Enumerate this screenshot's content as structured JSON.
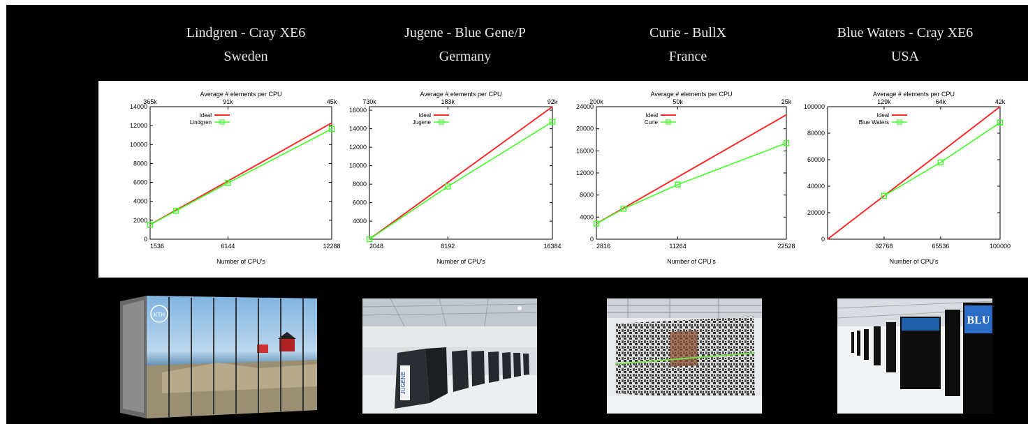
{
  "titles": [
    {
      "name": "Lindgren - Cray XE6",
      "country": "Sweden"
    },
    {
      "name": "Jugene - Blue Gene/P",
      "country": "Germany"
    },
    {
      "name": "Curie - BullX",
      "country": "France"
    },
    {
      "name": "Blue Waters - Cray XE6",
      "country": "USA"
    }
  ],
  "colors": {
    "ideal": "#ff2a2a",
    "measured": "#44ff2a",
    "background": "#000000"
  },
  "chart_data": [
    {
      "type": "line",
      "title": "Average # elements per CPU",
      "xlabel": "Number of CPU's",
      "xlim": [
        1536,
        12288
      ],
      "ylim": [
        0,
        14000
      ],
      "x_ticks": [
        1536,
        6144,
        12288
      ],
      "x_tick_labels": [
        "1536",
        "6144",
        "12288"
      ],
      "y_ticks": [
        0,
        2000,
        4000,
        6000,
        8000,
        10000,
        12000,
        14000
      ],
      "top_ticks": [
        1536,
        6144,
        12288
      ],
      "top_tick_labels": [
        "365k",
        "91k",
        "45k"
      ],
      "legend_position": "top-left",
      "series": [
        {
          "name": "Ideal",
          "x": [
            1536,
            12288
          ],
          "y": [
            1536,
            12288
          ]
        },
        {
          "name": "Lindgren",
          "x": [
            1536,
            3072,
            6144,
            12288
          ],
          "y": [
            1536,
            3000,
            5950,
            11650
          ]
        }
      ]
    },
    {
      "type": "line",
      "title": "Average # elements per CPU",
      "xlabel": "Number of CPU's",
      "xlim": [
        2048,
        16384
      ],
      "ylim": [
        2048,
        16384
      ],
      "x_ticks": [
        2048,
        8192,
        16384
      ],
      "x_tick_labels": [
        "2048",
        "8192",
        "16384"
      ],
      "y_ticks": [
        4000,
        6000,
        8000,
        10000,
        12000,
        14000,
        16000
      ],
      "top_ticks": [
        2048,
        8192,
        16384
      ],
      "top_tick_labels": [
        "730k",
        "183k",
        "92k"
      ],
      "legend_position": "top-left",
      "series": [
        {
          "name": "Ideal",
          "x": [
            2048,
            16384
          ],
          "y": [
            2048,
            16384
          ]
        },
        {
          "name": "Jugene",
          "x": [
            2048,
            8192,
            16384
          ],
          "y": [
            2048,
            7750,
            14750
          ]
        }
      ]
    },
    {
      "type": "line",
      "title": "Average # elements per CPU",
      "xlabel": "Number of CPU's",
      "xlim": [
        2816,
        22528
      ],
      "ylim": [
        0,
        24000
      ],
      "x_ticks": [
        2816,
        11264,
        22528
      ],
      "x_tick_labels": [
        "2816",
        "11264",
        "22528"
      ],
      "y_ticks": [
        0,
        4000,
        8000,
        12000,
        16000,
        20000,
        24000
      ],
      "top_ticks": [
        2816,
        11264,
        22528
      ],
      "top_tick_labels": [
        "200k",
        "50k",
        "25k"
      ],
      "legend_position": "top-left",
      "series": [
        {
          "name": "Ideal",
          "x": [
            2816,
            22528
          ],
          "y": [
            2816,
            22528
          ]
        },
        {
          "name": "Curie",
          "x": [
            2816,
            5632,
            11264,
            22528
          ],
          "y": [
            2816,
            5500,
            9900,
            17400
          ]
        }
      ]
    },
    {
      "type": "line",
      "title": "Average # elements per CPU",
      "xlabel": "Number of CPU's",
      "xlim": [
        0,
        100000
      ],
      "ylim": [
        0,
        100000
      ],
      "x_ticks": [
        32768,
        65536,
        100000
      ],
      "x_tick_labels": [
        "32768",
        "65536",
        "100000"
      ],
      "y_ticks": [
        0,
        20000,
        40000,
        60000,
        80000,
        100000
      ],
      "top_ticks": [
        32768,
        65536,
        100000
      ],
      "top_tick_labels": [
        "129k",
        "64k",
        "42k"
      ],
      "legend_position": "top-left",
      "series": [
        {
          "name": "Ideal",
          "x": [
            0,
            100000
          ],
          "y": [
            0,
            100000
          ]
        },
        {
          "name": "Blue Waters",
          "x": [
            32768,
            65536,
            100000
          ],
          "y": [
            32768,
            58000,
            88000
          ]
        }
      ]
    }
  ],
  "photos": [
    {
      "label": "",
      "icon": "cray-xe6-cabinets-photo"
    },
    {
      "label": "JUGENE",
      "icon": "blue-gene-hall-photo"
    },
    {
      "label": "",
      "icon": "bullx-racks-photo"
    },
    {
      "label": "BLU",
      "icon": "blue-waters-hall-photo"
    }
  ]
}
